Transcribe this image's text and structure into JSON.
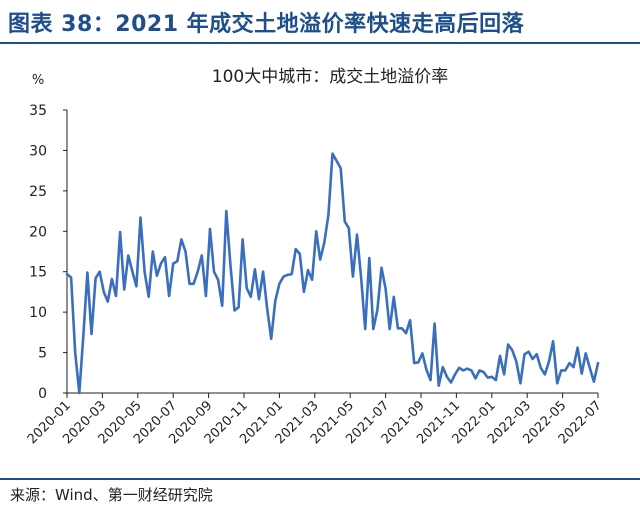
{
  "figure": {
    "title": "图表 38：2021 年成交土地溢价率快速走高后回落",
    "source": "来源：Wind、第一财经研究院"
  },
  "colors": {
    "title": "#1e4e8c",
    "line": "#3a6fbe",
    "rule": "#1e4e8c"
  },
  "chart_data": {
    "type": "line",
    "title": "100大中城市：成交土地溢价率",
    "ylabel": "%",
    "ylim": [
      0,
      35
    ],
    "yticks": [
      0,
      5,
      10,
      15,
      20,
      25,
      30,
      35
    ],
    "grid": false,
    "legend": "none",
    "x_ticks": [
      "2020-01",
      "2020-03",
      "2020-05",
      "2020-07",
      "2020-09",
      "2020-11",
      "2021-01",
      "2021-03",
      "2021-05",
      "2021-07",
      "2021-09",
      "2021-11",
      "2022-01",
      "2022-03",
      "2022-05",
      "2022-07"
    ],
    "series": [
      {
        "values": [
          14.7,
          14.3,
          5.0,
          0.0,
          7.0,
          14.9,
          7.3,
          14.2,
          15.0,
          12.5,
          11.3,
          14.1,
          12.0,
          19.9,
          12.8,
          17.0,
          15.0,
          13.2,
          21.7,
          15.0,
          11.9,
          17.5,
          14.5,
          16.0,
          16.8,
          12.0,
          16.0,
          16.3,
          19.0,
          17.5,
          13.5,
          13.5,
          15.0,
          17.0,
          12.0,
          20.3,
          15.0,
          14.0,
          10.8,
          22.5,
          15.9,
          10.2,
          10.6,
          19.0,
          13.0,
          11.9,
          15.3,
          11.6,
          15.0,
          10.5,
          6.7,
          11.4,
          13.5,
          14.4,
          14.6,
          14.7,
          17.8,
          17.2,
          12.5,
          15.2,
          14.0,
          20.0,
          16.5,
          18.6,
          22.0,
          29.6,
          28.7,
          27.8,
          21.2,
          20.4,
          14.4,
          19.6,
          14.3,
          7.9,
          16.7,
          7.9,
          10.3,
          15.5,
          12.9,
          7.9,
          11.9,
          8.0,
          8.0,
          7.4,
          9.0,
          3.7,
          3.8,
          4.9,
          2.9,
          1.6,
          8.6,
          0.9,
          3.2,
          2.0,
          1.3,
          2.3,
          3.1,
          2.8,
          3.0,
          2.8,
          1.8,
          2.8,
          2.6,
          1.9,
          2.0,
          1.6,
          4.6,
          2.3,
          6.0,
          5.3,
          3.9,
          1.2,
          4.8,
          5.1,
          4.2,
          4.8,
          3.1,
          2.3,
          3.9,
          6.4,
          1.2,
          2.8,
          2.8,
          3.7,
          3.2,
          5.6,
          2.4,
          4.9,
          3.1,
          1.4,
          3.7
        ]
      }
    ]
  }
}
